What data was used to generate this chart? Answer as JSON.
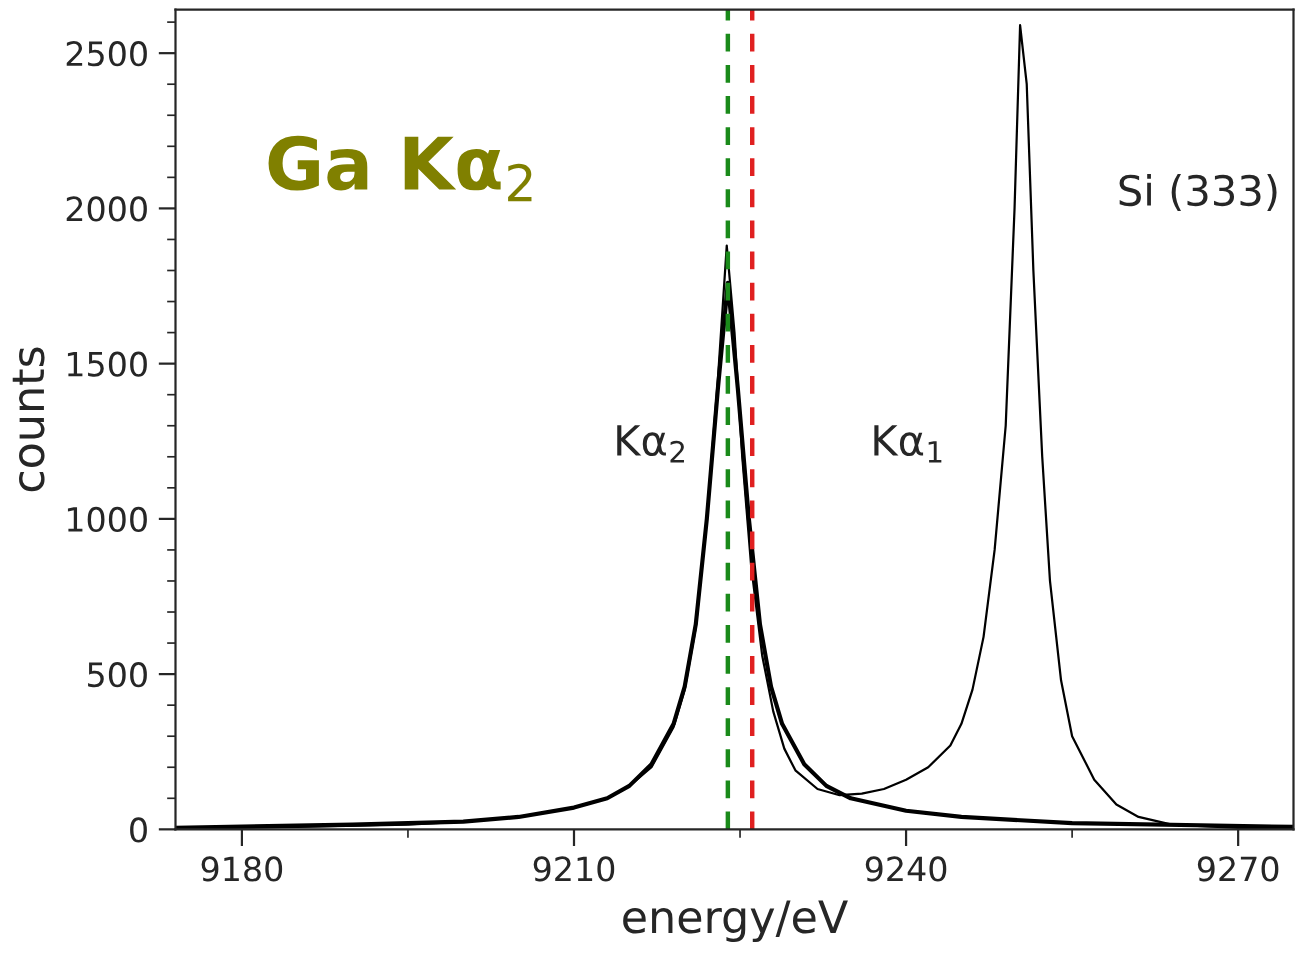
{
  "chart_data": {
    "type": "line",
    "title": "Ga Kα$_{2}$",
    "xlabel": "energy/eV",
    "ylabel": "counts",
    "xlim": [
      9174,
      9275
    ],
    "ylim": [
      0,
      2640
    ],
    "xticks": [
      9180,
      {
        "value": 9195,
        "label": null
      },
      9210,
      {
        "value": 9225,
        "label": null
      },
      9240,
      {
        "value": 9255,
        "label": null
      },
      9270
    ],
    "yticks": [
      0,
      {
        "value": 100,
        "label": null
      },
      {
        "value": 200,
        "label": null
      },
      {
        "value": 300,
        "label": null
      },
      {
        "value": 400,
        "label": null
      },
      500,
      {
        "value": 600,
        "label": null
      },
      {
        "value": 700,
        "label": null
      },
      {
        "value": 800,
        "label": null
      },
      {
        "value": 900,
        "label": null
      },
      1000,
      {
        "value": 1100,
        "label": null
      },
      {
        "value": 1200,
        "label": null
      },
      {
        "value": 1300,
        "label": null
      },
      {
        "value": 1400,
        "label": null
      },
      1500,
      {
        "value": 1600,
        "label": null
      },
      {
        "value": 1700,
        "label": null
      },
      {
        "value": 1800,
        "label": null
      },
      {
        "value": 1900,
        "label": null
      },
      2000,
      {
        "value": 2100,
        "label": null
      },
      {
        "value": 2200,
        "label": null
      },
      {
        "value": 2300,
        "label": null
      },
      {
        "value": 2400,
        "label": null
      },
      2500,
      {
        "value": 2600,
        "label": null
      }
    ],
    "grid": false,
    "legend": false,
    "marker": "none",
    "line_style": "solid",
    "series": [
      {
        "color": "#000000",
        "x": [
          9174,
          9185,
          9195,
          9200,
          9205,
          9210,
          9213,
          9215,
          9217,
          9219,
          9220,
          9221,
          9222,
          9223,
          9223.8,
          9224.5,
          9225.2,
          9226,
          9227,
          9228,
          9229,
          9230,
          9232,
          9234,
          9236,
          9238,
          9240,
          9242,
          9244,
          9245,
          9246,
          9247,
          9248,
          9249,
          9249.8,
          9250.3,
          9250.9,
          9251.5,
          9252.3,
          9253,
          9254,
          9255,
          9257,
          9259,
          9261,
          9264,
          9270,
          9275
        ],
        "values": [
          3,
          8,
          15,
          25,
          40,
          70,
          100,
          140,
          200,
          330,
          450,
          650,
          1000,
          1450,
          1880,
          1600,
          1200,
          850,
          560,
          380,
          260,
          190,
          130,
          110,
          115,
          130,
          160,
          200,
          270,
          340,
          450,
          620,
          900,
          1300,
          2000,
          2590,
          2400,
          1800,
          1200,
          800,
          480,
          300,
          160,
          80,
          40,
          15,
          5,
          3
        ]
      },
      {
        "color": "#000000",
        "x": [
          9174,
          9190,
          9200,
          9205,
          9210,
          9213,
          9215,
          9217,
          9219,
          9220,
          9221,
          9222,
          9223,
          9223.9,
          9224.8,
          9225.8,
          9226.8,
          9227.8,
          9228.8,
          9230.8,
          9232.8,
          9235,
          9240,
          9245,
          9255,
          9275
        ],
        "values": [
          5,
          15,
          25,
          40,
          70,
          100,
          140,
          210,
          340,
          460,
          660,
          1000,
          1420,
          1760,
          1420,
          1000,
          660,
          460,
          340,
          210,
          140,
          100,
          60,
          40,
          20,
          8
        ]
      }
    ],
    "ref_lines": [
      {
        "axis": "x",
        "value": 9223.9,
        "color": "#1a8a1a",
        "line_style": "dashed"
      },
      {
        "axis": "x",
        "value": 9226.1,
        "color": "#e02020",
        "line_style": "dashed"
      }
    ],
    "annotations": [
      "Kα$_{2}$",
      "Kα$_{1}$",
      "Si (333)"
    ]
  }
}
